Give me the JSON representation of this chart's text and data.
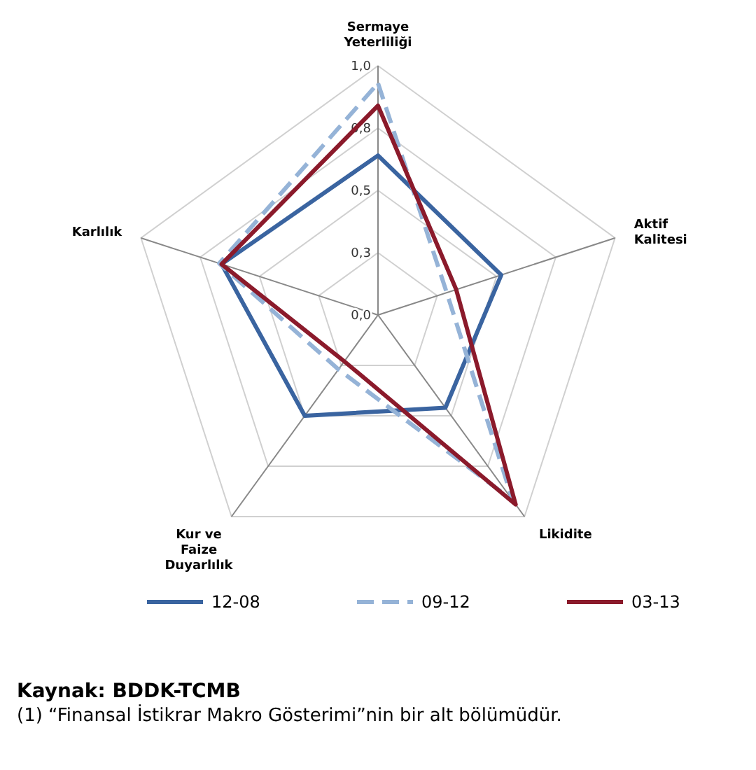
{
  "chart_data": {
    "type": "radar",
    "categories": [
      "Sermaye Yeterliliği",
      "Aktif Kalitesi",
      "Likidite",
      "Kur ve Faize Duyarlılık",
      "Karlılık"
    ],
    "series": [
      {
        "name": "12-08",
        "color": "#3a64a0",
        "values": [
          0.64,
          0.52,
          0.46,
          0.5,
          0.66
        ],
        "line_style": "solid"
      },
      {
        "name": "09-12",
        "color": "#95b3d7",
        "values": [
          0.93,
          0.29,
          0.92,
          0.27,
          0.67
        ],
        "line_style": "dashed"
      },
      {
        "name": "03-13",
        "color": "#8b1a2b",
        "values": [
          0.84,
          0.33,
          0.94,
          0.23,
          0.66
        ],
        "line_style": "solid"
      }
    ],
    "ylim": [
      0,
      1
    ],
    "yticks": [
      {
        "value": 0,
        "label": "0,0"
      },
      {
        "value": 0.25,
        "label": "0,3"
      },
      {
        "value": 0.5,
        "label": "0,5"
      },
      {
        "value": 0.75,
        "label": "0,8"
      },
      {
        "value": 1,
        "label": "1,0"
      }
    ],
    "grid": true,
    "legend": "bottom",
    "marker": "none",
    "annotations": [
      "Kaynak: BDDK-TCMB",
      "(1) “Finansal İstikrar Makro Gösterimi”nin bir alt bölümüdür."
    ]
  }
}
